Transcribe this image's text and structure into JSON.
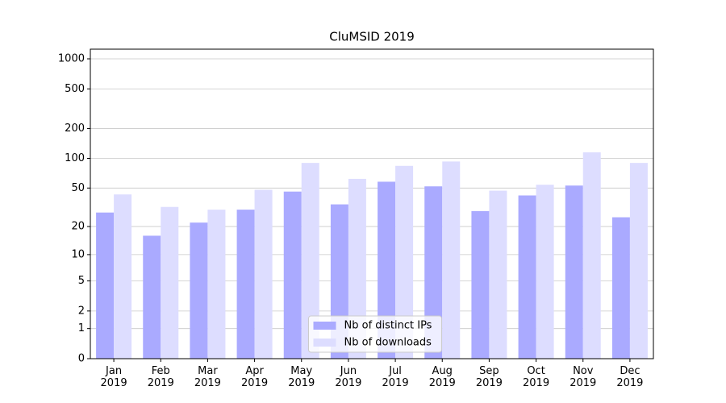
{
  "chart_data": {
    "type": "bar",
    "title": "CluMSID 2019",
    "categories": [
      "Jan\n2019",
      "Feb\n2019",
      "Mar\n2019",
      "Apr\n2019",
      "May\n2019",
      "Jun\n2019",
      "Jul\n2019",
      "Aug\n2019",
      "Sep\n2019",
      "Oct\n2019",
      "Nov\n2019",
      "Dec\n2019"
    ],
    "series": [
      {
        "name": "Nb of distinct IPs",
        "color": "#aaaaff",
        "values": [
          28,
          16,
          22,
          30,
          46,
          34,
          58,
          52,
          29,
          42,
          53,
          25
        ]
      },
      {
        "name": "Nb of downloads",
        "color": "#ddddff",
        "values": [
          43,
          32,
          30,
          48,
          90,
          62,
          84,
          93,
          47,
          54,
          115,
          90
        ]
      }
    ],
    "yscale": "log1p",
    "ylim": [
      0,
      1250
    ],
    "yticks": [
      0,
      1,
      2,
      5,
      10,
      20,
      50,
      100,
      200,
      500,
      1000
    ],
    "grid": true,
    "legend": "lower center"
  }
}
